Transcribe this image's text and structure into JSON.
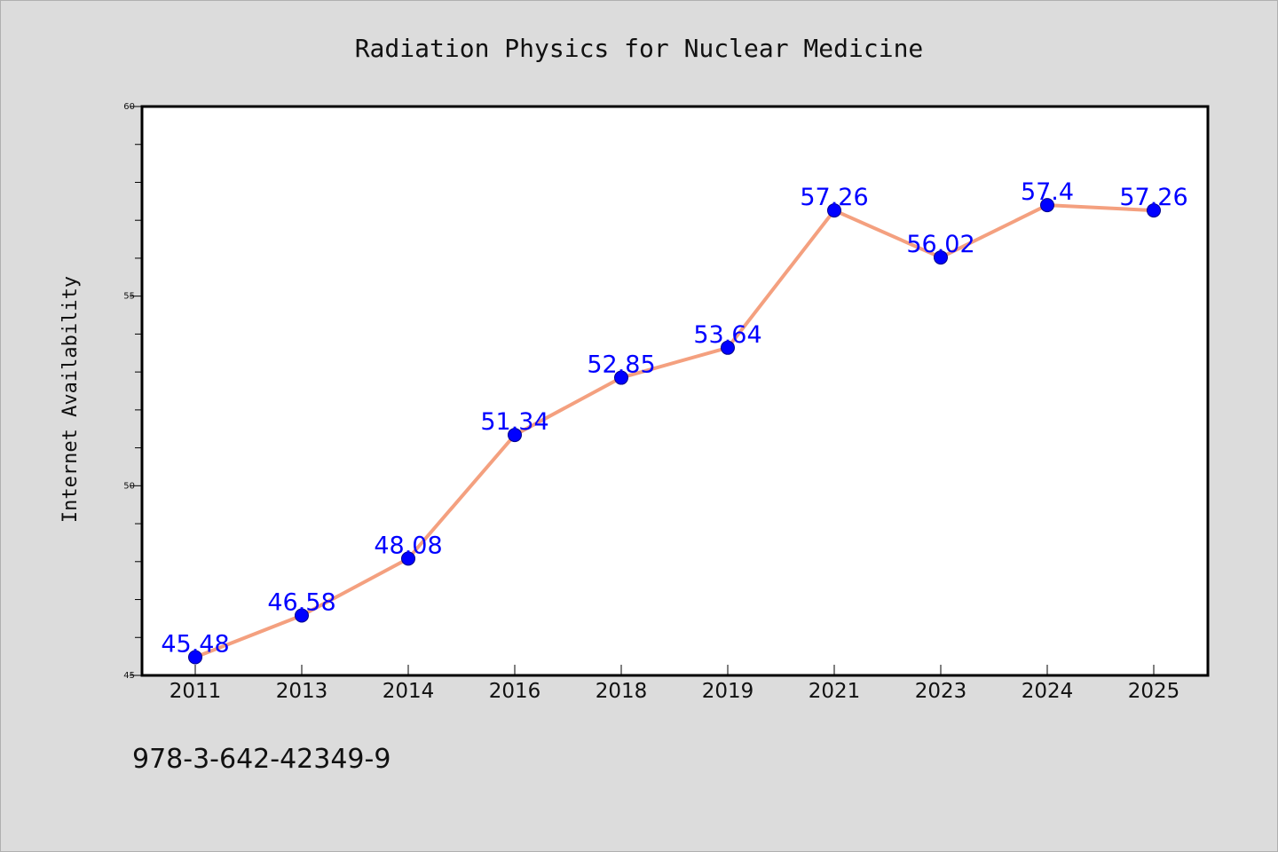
{
  "chart_data": {
    "type": "line",
    "title": "Radiation Physics for Nuclear Medicine",
    "xlabel": "",
    "ylabel": "Internet Availability",
    "categories": [
      "2011",
      "2013",
      "2014",
      "2016",
      "2018",
      "2019",
      "2021",
      "2023",
      "2024",
      "2025"
    ],
    "series": [
      {
        "values": [
          45.48,
          46.58,
          48.08,
          51.34,
          52.85,
          53.64,
          57.26,
          56.02,
          57.4,
          57.26
        ],
        "labels": [
          "45.48",
          "46.58",
          "48.08",
          "51.34",
          "52.85",
          "53.64",
          "57.26",
          "56.02",
          "57.4",
          "57.26"
        ]
      }
    ],
    "ylim": [
      45,
      60
    ],
    "yticks": [
      45,
      50,
      55,
      60
    ],
    "grid": false,
    "colors": {
      "line": "#f4a07f",
      "marker": "#0000ff",
      "marker_edge": "#00008b",
      "label": "#0000ff",
      "plot_bg": "#ffffff",
      "page_bg": "#dcdcdc"
    }
  },
  "footer": {
    "isbn": "978-3-642-42349-9"
  }
}
